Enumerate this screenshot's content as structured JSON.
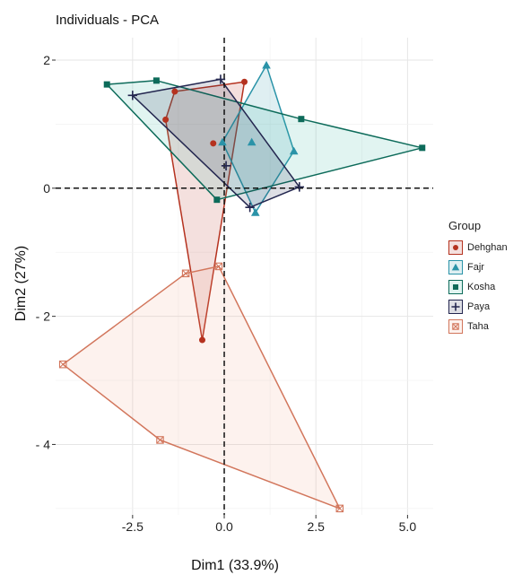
{
  "chart_data": {
    "type": "scatter",
    "title": "Individuals -  PCA",
    "xlabel": "Dim1 (33.9%)",
    "ylabel": "Dim2 (27%)",
    "xlim": [
      -4.6,
      5.7
    ],
    "ylim": [
      -5.1,
      2.35
    ],
    "xticks": [
      -2.5,
      0.0,
      2.5,
      5.0
    ],
    "xtick_labels": [
      "-2.5",
      "0.0",
      "2.5",
      "5.0"
    ],
    "yticks": [
      2,
      0,
      -2,
      -4
    ],
    "ytick_labels": [
      "2",
      "0",
      "- 2",
      "- 4"
    ],
    "grid": true,
    "reference_lines": {
      "x": 0,
      "y": 0
    },
    "legend": {
      "title": "Group",
      "placement": "right"
    },
    "series": [
      {
        "name": "Dehghan",
        "color": "#b5321f",
        "fill": "#b5321f",
        "marker": "circle",
        "points": [
          [
            -0.6,
            -2.37
          ],
          [
            -1.6,
            1.07
          ],
          [
            -1.35,
            1.51
          ],
          [
            -0.3,
            0.7
          ],
          [
            0.55,
            1.66
          ]
        ],
        "hull": [
          [
            -1.6,
            1.07
          ],
          [
            -1.35,
            1.51
          ],
          [
            0.55,
            1.66
          ],
          [
            -0.6,
            -2.37
          ]
        ]
      },
      {
        "name": "Fajr",
        "color": "#2a93a8",
        "fill": "#2a93a8",
        "marker": "triangle",
        "points": [
          [
            1.15,
            1.92
          ],
          [
            -0.05,
            0.72
          ],
          [
            0.75,
            0.72
          ],
          [
            1.9,
            0.58
          ],
          [
            0.85,
            -0.38
          ]
        ],
        "hull": [
          [
            1.15,
            1.92
          ],
          [
            1.9,
            0.58
          ],
          [
            0.85,
            -0.38
          ],
          [
            -0.05,
            0.72
          ]
        ]
      },
      {
        "name": "Kosha",
        "color": "#0d6b5a",
        "fill": "#33b39e",
        "marker": "square",
        "points": [
          [
            -3.2,
            1.62
          ],
          [
            -1.85,
            1.68
          ],
          [
            2.1,
            1.08
          ],
          [
            5.4,
            0.63
          ],
          [
            -0.2,
            -0.18
          ]
        ],
        "hull": [
          [
            -3.2,
            1.62
          ],
          [
            -1.85,
            1.68
          ],
          [
            2.1,
            1.08
          ],
          [
            5.4,
            0.63
          ],
          [
            -0.2,
            -0.18
          ]
        ]
      },
      {
        "name": "Paya",
        "color": "#23264f",
        "fill": "#23264f",
        "marker": "plus",
        "points": [
          [
            -2.5,
            1.45
          ],
          [
            -0.1,
            1.7
          ],
          [
            0.05,
            0.35
          ],
          [
            0.7,
            -0.3
          ],
          [
            2.05,
            0.02
          ]
        ],
        "hull": [
          [
            -2.5,
            1.45
          ],
          [
            -0.1,
            1.7
          ],
          [
            2.05,
            0.02
          ],
          [
            0.7,
            -0.3
          ]
        ]
      },
      {
        "name": "Taha",
        "color": "#d2765c",
        "fill": "#f2a890",
        "marker": "boxcross",
        "points": [
          [
            -1.05,
            -1.33
          ],
          [
            -0.15,
            -1.22
          ],
          [
            -4.4,
            -2.75
          ],
          [
            -1.75,
            -3.93
          ],
          [
            3.15,
            -5.0
          ]
        ],
        "hull": [
          [
            -1.05,
            -1.33
          ],
          [
            -0.15,
            -1.22
          ],
          [
            3.15,
            -5.0
          ],
          [
            -1.75,
            -3.93
          ],
          [
            -4.4,
            -2.75
          ]
        ]
      }
    ]
  }
}
